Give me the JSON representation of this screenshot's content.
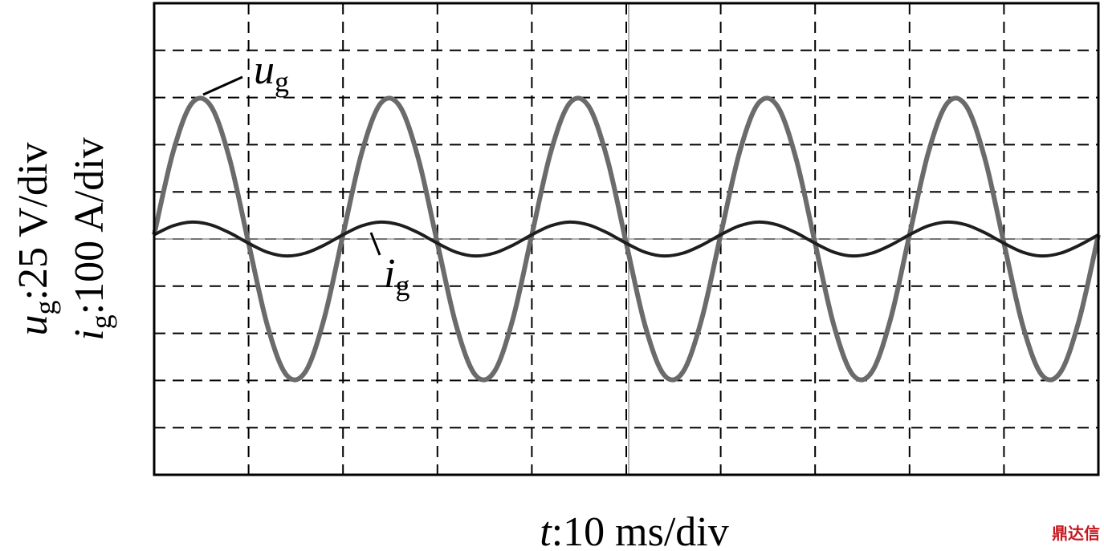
{
  "chart_data": {
    "type": "line",
    "xlabel": {
      "symbol": "t",
      "text": ":10 ms/div"
    },
    "ylabel": [
      {
        "symbol": "u",
        "subscript": "g",
        "text": ":25 V/div"
      },
      {
        "symbol": "i",
        "subscript": "g",
        "text": ":100 A/div"
      }
    ],
    "annotations": [
      {
        "symbol": "u",
        "subscript": "g"
      },
      {
        "symbol": "i",
        "subscript": "g"
      }
    ],
    "watermark": "鼎达信",
    "xlim": [
      0,
      10
    ],
    "ylim": [
      -5,
      5
    ],
    "xticks": [
      0,
      1,
      2,
      3,
      4,
      5,
      6,
      7,
      8,
      9,
      10
    ],
    "yticks": [
      -5,
      -4,
      -3,
      -2,
      -1,
      0,
      1,
      2,
      3,
      4,
      5
    ],
    "grid": true,
    "x": [
      0,
      0.2,
      0.4,
      0.6,
      0.8,
      1,
      1.2,
      1.4,
      1.6,
      1.8,
      2,
      2.2,
      2.4,
      2.6,
      2.8,
      3,
      3.2,
      3.4,
      3.6,
      3.8,
      4,
      4.2,
      4.4,
      4.6,
      4.8,
      5,
      5.2,
      5.4,
      5.6,
      5.8,
      6,
      6.2,
      6.4,
      6.6,
      6.8,
      7,
      7.2,
      7.4,
      7.6,
      7.8,
      8,
      8.2,
      8.4,
      8.6,
      8.8,
      9,
      9.2,
      9.4,
      9.6,
      9.8,
      10
    ],
    "series": [
      {
        "color": "#6b6b6b",
        "values": [
          0.09,
          1.84,
          2.88,
          2.82,
          1.69,
          -0.09,
          -1.84,
          -2.88,
          -2.82,
          -1.69,
          0.09,
          1.84,
          2.88,
          2.82,
          1.69,
          -0.09,
          -1.84,
          -2.88,
          -2.82,
          -1.69,
          0.09,
          1.84,
          2.88,
          2.82,
          1.69,
          -0.09,
          -1.84,
          -2.88,
          -2.82,
          -1.69,
          0.09,
          1.84,
          2.88,
          2.82,
          1.69,
          -0.09,
          -1.84,
          -2.88,
          -2.82,
          -1.69,
          0.09,
          1.84,
          2.88,
          2.82,
          1.69,
          -0.09,
          -1.84,
          -2.88,
          -2.82,
          -1.69,
          0.09
        ]
      },
      {
        "color": "#1e1e1e",
        "values": [
          0.09,
          0.28,
          0.36,
          0.3,
          0.13,
          -0.09,
          -0.28,
          -0.36,
          -0.3,
          -0.13,
          0.09,
          0.28,
          0.36,
          0.3,
          0.13,
          -0.09,
          -0.28,
          -0.36,
          -0.3,
          -0.13,
          0.09,
          0.28,
          0.36,
          0.3,
          0.13,
          -0.09,
          -0.28,
          -0.36,
          -0.3,
          -0.13,
          0.09,
          0.28,
          0.36,
          0.3,
          0.13,
          -0.09,
          -0.28,
          -0.36,
          -0.3,
          -0.13,
          0.09,
          0.28,
          0.36,
          0.3,
          0.13,
          -0.09,
          -0.28,
          -0.36,
          -0.3,
          -0.13,
          0.09
        ]
      }
    ]
  }
}
